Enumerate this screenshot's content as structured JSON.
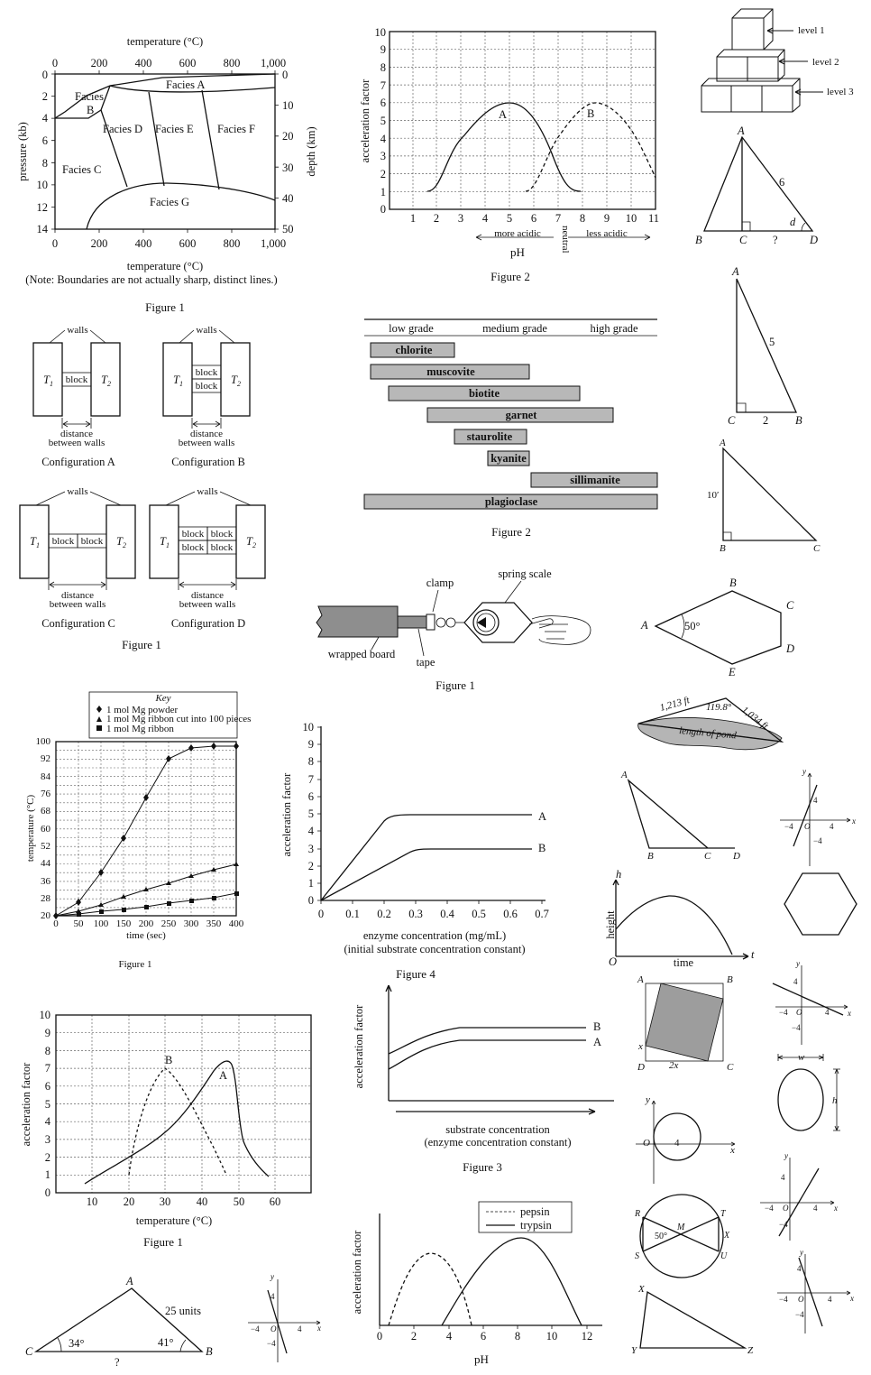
{
  "figA": {
    "top_axis_title": "temperature (°C)",
    "top_ticks": [
      "0",
      "200",
      "400",
      "600",
      "800",
      "1,000"
    ],
    "bottom_ticks": [
      "0",
      "200",
      "400",
      "600",
      "800",
      "1,000"
    ],
    "bottom_axis_title": "temperature (°C)",
    "left_title": "pressure (kb)",
    "left_ticks": [
      "0",
      "2",
      "4",
      "6",
      "8",
      "10",
      "12",
      "14"
    ],
    "right_title": "depth (km)",
    "right_ticks": [
      "0",
      "10",
      "20",
      "30",
      "40",
      "50"
    ],
    "facies": [
      "Facies A",
      "Facies",
      "B",
      "Facies D",
      "Facies E",
      "Facies F",
      "Facies C",
      "Facies G"
    ],
    "note": "(Note: Boundaries are not actually sharp, distinct lines.)",
    "caption": "Figure 1"
  },
  "figB": {
    "y_title": "acceleration factor",
    "y_ticks": [
      "0",
      "1",
      "2",
      "3",
      "4",
      "5",
      "6",
      "7",
      "8",
      "9",
      "10"
    ],
    "x_ticks": [
      "1",
      "2",
      "3",
      "4",
      "5",
      "6",
      "7",
      "8",
      "9",
      "10",
      "11"
    ],
    "curve_labels": [
      "A",
      "B"
    ],
    "more_acidic": "more acidic",
    "neutral": "neutral",
    "less_acidic": "less acidic",
    "x_title": "pH",
    "caption": "Figure 2"
  },
  "cubes": {
    "labels": [
      "level 1",
      "level 2",
      "level 3"
    ]
  },
  "tri1": {
    "labels": [
      "A",
      "B",
      "C",
      "?",
      "D",
      "6",
      "d"
    ]
  },
  "walls": {
    "walls": "walls",
    "t1": "T",
    "t1_sub": "1",
    "t2": "T",
    "t2_sub": "2",
    "block": "block",
    "distance": "distance",
    "between": "between walls",
    "configs": [
      "Configuration A",
      "Configuration B",
      "Configuration C",
      "Configuration D"
    ],
    "caption": "Figure 1"
  },
  "minerals": {
    "grades": [
      "low grade",
      "medium grade",
      "high grade"
    ],
    "bars": [
      "chlorite",
      "muscovite",
      "biotite",
      "garnet",
      "staurolite",
      "kyanite",
      "sillimanite",
      "plagioclase"
    ],
    "caption": "Figure 2"
  },
  "tri2": {
    "labels": [
      "A",
      "5",
      "C",
      "2",
      "B"
    ]
  },
  "tri3": {
    "labels": [
      "A",
      "10′",
      "B",
      "C"
    ]
  },
  "spring": {
    "labels": [
      "clamp",
      "spring scale",
      "wrapped board",
      "tape"
    ],
    "caption": "Figure 1"
  },
  "hexagon": {
    "labels": [
      "A",
      "B",
      "C",
      "D",
      "E",
      "50°"
    ]
  },
  "pond": {
    "labels": [
      "1,213 ft",
      "119.8°",
      "1,034 ft",
      "length of pond"
    ]
  },
  "tri4": {
    "labels": [
      "A",
      "B",
      "C",
      "D"
    ]
  },
  "mg": {
    "key_title": "Key",
    "key": [
      "1 mol Mg powder",
      "1 mol Mg ribbon cut into 100 pieces",
      "1 mol Mg ribbon"
    ],
    "y_title": "temperature (°C)",
    "y_ticks": [
      "20",
      "24",
      "28",
      "32",
      "36",
      "40",
      "44",
      "48",
      "52",
      "56",
      "60",
      "64",
      "68",
      "72",
      "76",
      "80",
      "84",
      "88",
      "92",
      "96",
      "100"
    ],
    "x_ticks": [
      "0",
      "50",
      "100",
      "150",
      "200",
      "250",
      "300",
      "350",
      "400"
    ],
    "x_title": "time (sec)",
    "caption": "Figure 1"
  },
  "fig4": {
    "y_title": "acceleration factor",
    "y_ticks": [
      "0",
      "1",
      "2",
      "3",
      "4",
      "5",
      "6",
      "7",
      "8",
      "9",
      "10"
    ],
    "x_ticks": [
      "0",
      "0.1",
      "0.2",
      "0.3",
      "0.4",
      "0.5",
      "0.6",
      "0.7"
    ],
    "labels": [
      "A",
      "B"
    ],
    "x_title": "enzyme concentration (mg/mL)",
    "x_sub": "(initial substrate concentration constant)",
    "caption": "Figure 4"
  },
  "height": {
    "labels": [
      "h",
      "height",
      "time",
      "O",
      "t"
    ]
  },
  "fig1t": {
    "y_title": "acceleration factor",
    "y_ticks": [
      "0",
      "1",
      "2",
      "3",
      "4",
      "5",
      "6",
      "7",
      "8",
      "9",
      "10"
    ],
    "x_ticks": [
      "10",
      "20",
      "30",
      "40",
      "50",
      "60"
    ],
    "labels": [
      "A",
      "B"
    ],
    "x_title": "temperature (°C)",
    "caption": "Figure 1"
  },
  "fig3": {
    "y_title": "acceleration factor",
    "labels": [
      "B",
      "A"
    ],
    "x_title": "substrate concentration",
    "x_sub": "(enzyme concentration constant)",
    "caption": "Figure 3"
  },
  "square": {
    "labels": [
      "A",
      "B",
      "D",
      "C",
      "x",
      "2x"
    ]
  },
  "circle": {
    "labels": [
      "y",
      "O",
      "4",
      "x"
    ]
  },
  "ellipse": {
    "labels": [
      "w",
      "h"
    ]
  },
  "pepsin": {
    "legend": [
      "pepsin",
      "trypsin"
    ],
    "y_title": "acceleration factor",
    "x_ticks": [
      "0",
      "2",
      "4",
      "6",
      "8",
      "10",
      "12"
    ],
    "x_title": "pH"
  },
  "circle2": {
    "labels": [
      "R",
      "M",
      "T",
      "X",
      "50°",
      "S",
      "U"
    ]
  },
  "tri5": {
    "labels": [
      "A",
      "25 units",
      "C",
      "34°",
      "41°",
      "B",
      "?"
    ]
  },
  "tri6": {
    "labels": [
      "X",
      "Y",
      "Z"
    ]
  },
  "axes": {
    "y": "y",
    "x": "x",
    "o": "O",
    "p4": "4",
    "m4": "−4"
  }
}
